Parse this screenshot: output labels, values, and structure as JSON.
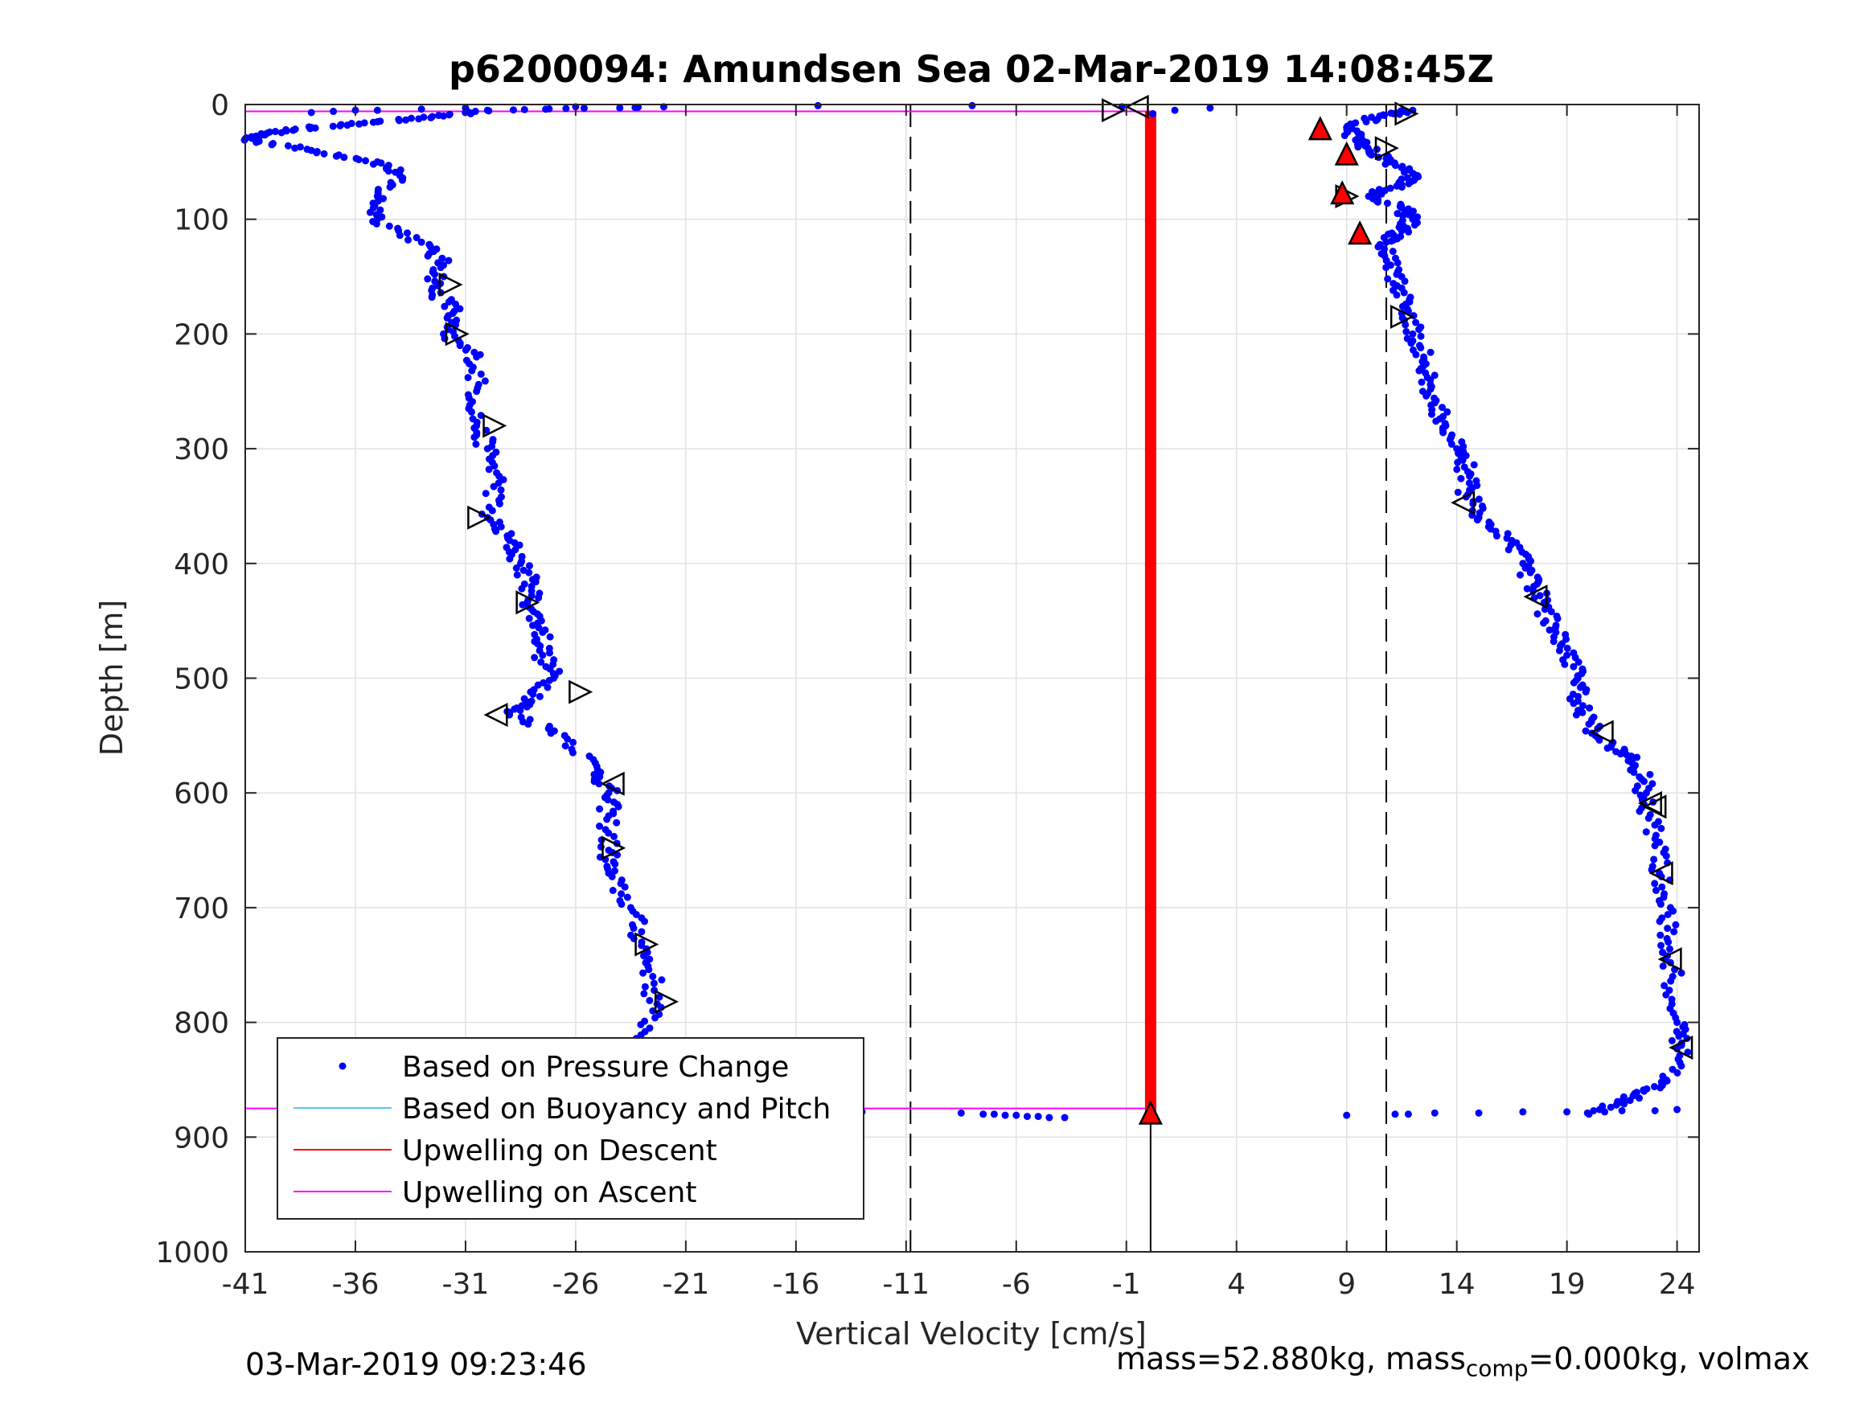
{
  "chart_data": {
    "type": "scatter",
    "title": "p6200094: Amundsen Sea 02-Mar-2019 14:08:45Z",
    "xlabel": "Vertical Velocity [cm/s]",
    "ylabel": "Depth [m]",
    "xlim": [
      -41,
      25
    ],
    "ylim": [
      0,
      1000
    ],
    "y_reversed": true,
    "grid": true,
    "xticks": [
      "-41",
      "-36",
      "-31",
      "-26",
      "-21",
      "-16",
      "-11",
      "-6",
      "-1",
      "4",
      "9",
      "14",
      "19",
      "24"
    ],
    "yticks": [
      "0",
      "100",
      "200",
      "300",
      "400",
      "500",
      "600",
      "700",
      "800",
      "900",
      "1000"
    ],
    "legend_position": "bottom-left",
    "legend": [
      {
        "label": "Based on Pressure Change",
        "style": "dot",
        "color": "#0000ff"
      },
      {
        "label": "Based on Buoyancy and Pitch",
        "style": "line",
        "color": "#5ac8e6"
      },
      {
        "label": "Upwelling on Descent",
        "style": "line",
        "color": "#ff0000"
      },
      {
        "label": "Upwelling on Ascent",
        "style": "line",
        "color": "#ff00ff"
      }
    ],
    "reference_lines": {
      "dashed_x": [
        -10.8,
        10.8
      ],
      "ascent_upwelling_depths": [
        6,
        875
      ],
      "center_x": 0.1
    },
    "series": [
      {
        "name": "Based on Pressure Change",
        "color": "#0000ff",
        "profiles": [
          {
            "part": "descent",
            "depth": [
              2,
              5,
              10,
              15,
              20,
              25,
              30,
              40,
              50,
              60,
              80,
              100,
              120,
              140,
              160,
              180,
              200,
              220,
              250,
              280,
              300,
              330,
              360,
              380,
              400,
              420,
              440,
              460,
              480,
              500,
              520,
              530,
              550,
              580,
              600,
              620,
              650,
              670,
              700,
              730,
              760,
              790,
              820,
              850,
              870
            ],
            "velocity": [
              -22,
              -30,
              -32,
              -35,
              -38,
              -40,
              -41,
              -38,
              -35,
              -34,
              -35,
              -35,
              -33,
              -32,
              -32.5,
              -31.5,
              -32,
              -30.5,
              -30.5,
              -30.5,
              -30,
              -29.5,
              -30,
              -29,
              -28.5,
              -28,
              -28,
              -27.5,
              -27.5,
              -27,
              -28,
              -29,
              -26.5,
              -25,
              -24.5,
              -24.5,
              -24.5,
              -24.5,
              -23.5,
              -23,
              -22.5,
              -22.5,
              -23,
              -22.5,
              -22.5
            ]
          },
          {
            "part": "descent-bottom",
            "depth": [
              876,
              877,
              878,
              879,
              880,
              880,
              881,
              881,
              882,
              882,
              883,
              883
            ],
            "velocity": [
              -19.5,
              -16,
              -13,
              -8.5,
              -7.5,
              -7,
              -6.5,
              -6,
              -5.5,
              -5,
              -4.5,
              -3.8
            ]
          },
          {
            "part": "surface-scatter",
            "depth": [
              1,
              1,
              2,
              3,
              4,
              5,
              5,
              6,
              7
            ],
            "velocity": [
              -15,
              -8,
              -26,
              -31,
              -33,
              -35,
              -36,
              -37,
              -38
            ]
          },
          {
            "part": "ascent",
            "depth": [
              880,
              870,
              860,
              850,
              820,
              800,
              760,
              730,
              700,
              670,
              640,
              610,
              590,
              570,
              560,
              540,
              520,
              500,
              480,
              460,
              440,
              420,
              400,
              380,
              360,
              340,
              320,
              300,
              280,
              260,
              240,
              220,
              200,
              180,
              160,
              140,
              120,
              110,
              100,
              90,
              80,
              70,
              60,
              50,
              40,
              30,
              20,
              10,
              5
            ],
            "velocity": [
              20,
              21.5,
              22.5,
              23.5,
              24.2,
              24,
              23.8,
              23.6,
              23.7,
              23.2,
              23,
              22.5,
              22.5,
              22,
              21,
              20,
              19.5,
              19.5,
              19,
              18.5,
              18,
              17.5,
              17,
              16.5,
              15,
              14.5,
              14.5,
              14,
              13.5,
              13,
              12.8,
              12.5,
              12,
              11.8,
              11.5,
              11,
              10.8,
              11.5,
              12,
              11.5,
              10,
              11.5,
              12,
              11,
              10,
              9.5,
              9,
              10.5,
              12
            ]
          },
          {
            "part": "ascent-bottom",
            "depth": [
              881,
              880,
              880,
              879,
              879,
              878,
              878,
              877,
              877,
              876
            ],
            "velocity": [
              9,
              11.2,
              11.8,
              13,
              15,
              17,
              19,
              21.5,
              23,
              24
            ]
          },
          {
            "part": "surface-ascent",
            "depth": [
              3,
              5,
              8,
              2
            ],
            "velocity": [
              2.8,
              1.2,
              0.2,
              -1.2
            ]
          }
        ]
      },
      {
        "name": "Upwelling on Descent",
        "color": "#ff0000",
        "description_value_x": 0.1,
        "depth_range": [
          6,
          880
        ]
      }
    ],
    "markers": {
      "open_right": [
        {
          "x": -31.7,
          "depth": 157
        },
        {
          "x": -31.4,
          "depth": 200
        },
        {
          "x": -29.7,
          "depth": 280
        },
        {
          "x": -30.4,
          "depth": 360
        },
        {
          "x": -28.2,
          "depth": 434
        },
        {
          "x": -25.8,
          "depth": 512
        },
        {
          "x": -24.3,
          "depth": 648
        },
        {
          "x": -22.8,
          "depth": 732
        },
        {
          "x": -21.9,
          "depth": 782
        },
        {
          "x": -22.1,
          "depth": 840
        },
        {
          "x": -1.6,
          "depth": 5
        },
        {
          "x": 11.7,
          "depth": 8
        },
        {
          "x": 10.8,
          "depth": 38
        },
        {
          "x": 11.5,
          "depth": 185
        },
        {
          "x": 9,
          "depth": 80
        }
      ],
      "open_left": [
        {
          "x": -29.6,
          "depth": 532
        },
        {
          "x": -24.3,
          "depth": 592
        },
        {
          "x": -0.5,
          "depth": 2
        },
        {
          "x": 14.3,
          "depth": 347
        },
        {
          "x": 17.6,
          "depth": 429
        },
        {
          "x": 20.6,
          "depth": 547
        },
        {
          "x": 22.8,
          "depth": 609
        },
        {
          "x": 23.3,
          "depth": 670
        },
        {
          "x": 23.7,
          "depth": 745
        },
        {
          "x": 24.2,
          "depth": 822
        },
        {
          "x": 23,
          "depth": 612
        }
      ],
      "filled_up": [
        {
          "x": -22.2,
          "depth": 874
        },
        {
          "x": 7.8,
          "depth": 22
        },
        {
          "x": 9,
          "depth": 44
        },
        {
          "x": 8.8,
          "depth": 78
        },
        {
          "x": 9.6,
          "depth": 113
        },
        {
          "x": 0.1,
          "depth": 880
        }
      ]
    }
  },
  "footer": {
    "timestamp": "03-Mar-2019 09:23:46",
    "mass_text_a": "mass=52.880kg, mass",
    "mass_sub": "comp",
    "mass_text_b": "=0.000kg, volmax"
  }
}
